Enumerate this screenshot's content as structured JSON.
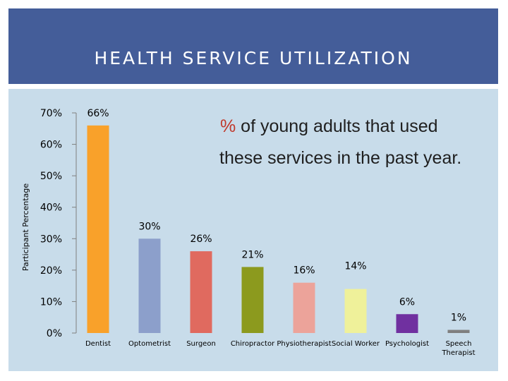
{
  "slide": {
    "title": "HEALTH SERVICE UTILIZATION"
  },
  "colors": {
    "header_bg": "#445d99",
    "chart_bg": "#c8dcea",
    "note_pct": "#c0392b"
  },
  "chart_data": {
    "type": "bar",
    "title": "",
    "annotation": {
      "line1_symbol": "%",
      "line1_rest": " of young adults that used",
      "line2": "these services in the past year."
    },
    "xlabel": "",
    "ylabel": "Participant Percentage",
    "ylim": [
      0,
      70
    ],
    "yticks": [
      "0%",
      "10%",
      "20%",
      "30%",
      "40%",
      "50%",
      "60%",
      "70%"
    ],
    "categories": [
      "Dentist",
      "Optometrist",
      "Surgeon",
      "Chiropractor",
      "Physiotherapist",
      "Social Worker",
      "Psychologist",
      "Speech Therapist"
    ],
    "values": [
      66,
      30,
      26,
      21,
      16,
      14,
      6,
      1
    ],
    "data_labels": [
      "66%",
      "30%",
      "26%",
      "21%",
      "16%",
      "14%",
      "6%",
      "1%"
    ],
    "bar_colors": [
      "#f9a12a",
      "#8c9fcb",
      "#e06a5f",
      "#8c9a1e",
      "#eca39a",
      "#eff19a",
      "#7030a0",
      "#7f7f7f"
    ],
    "grid": false,
    "legend": "none"
  }
}
